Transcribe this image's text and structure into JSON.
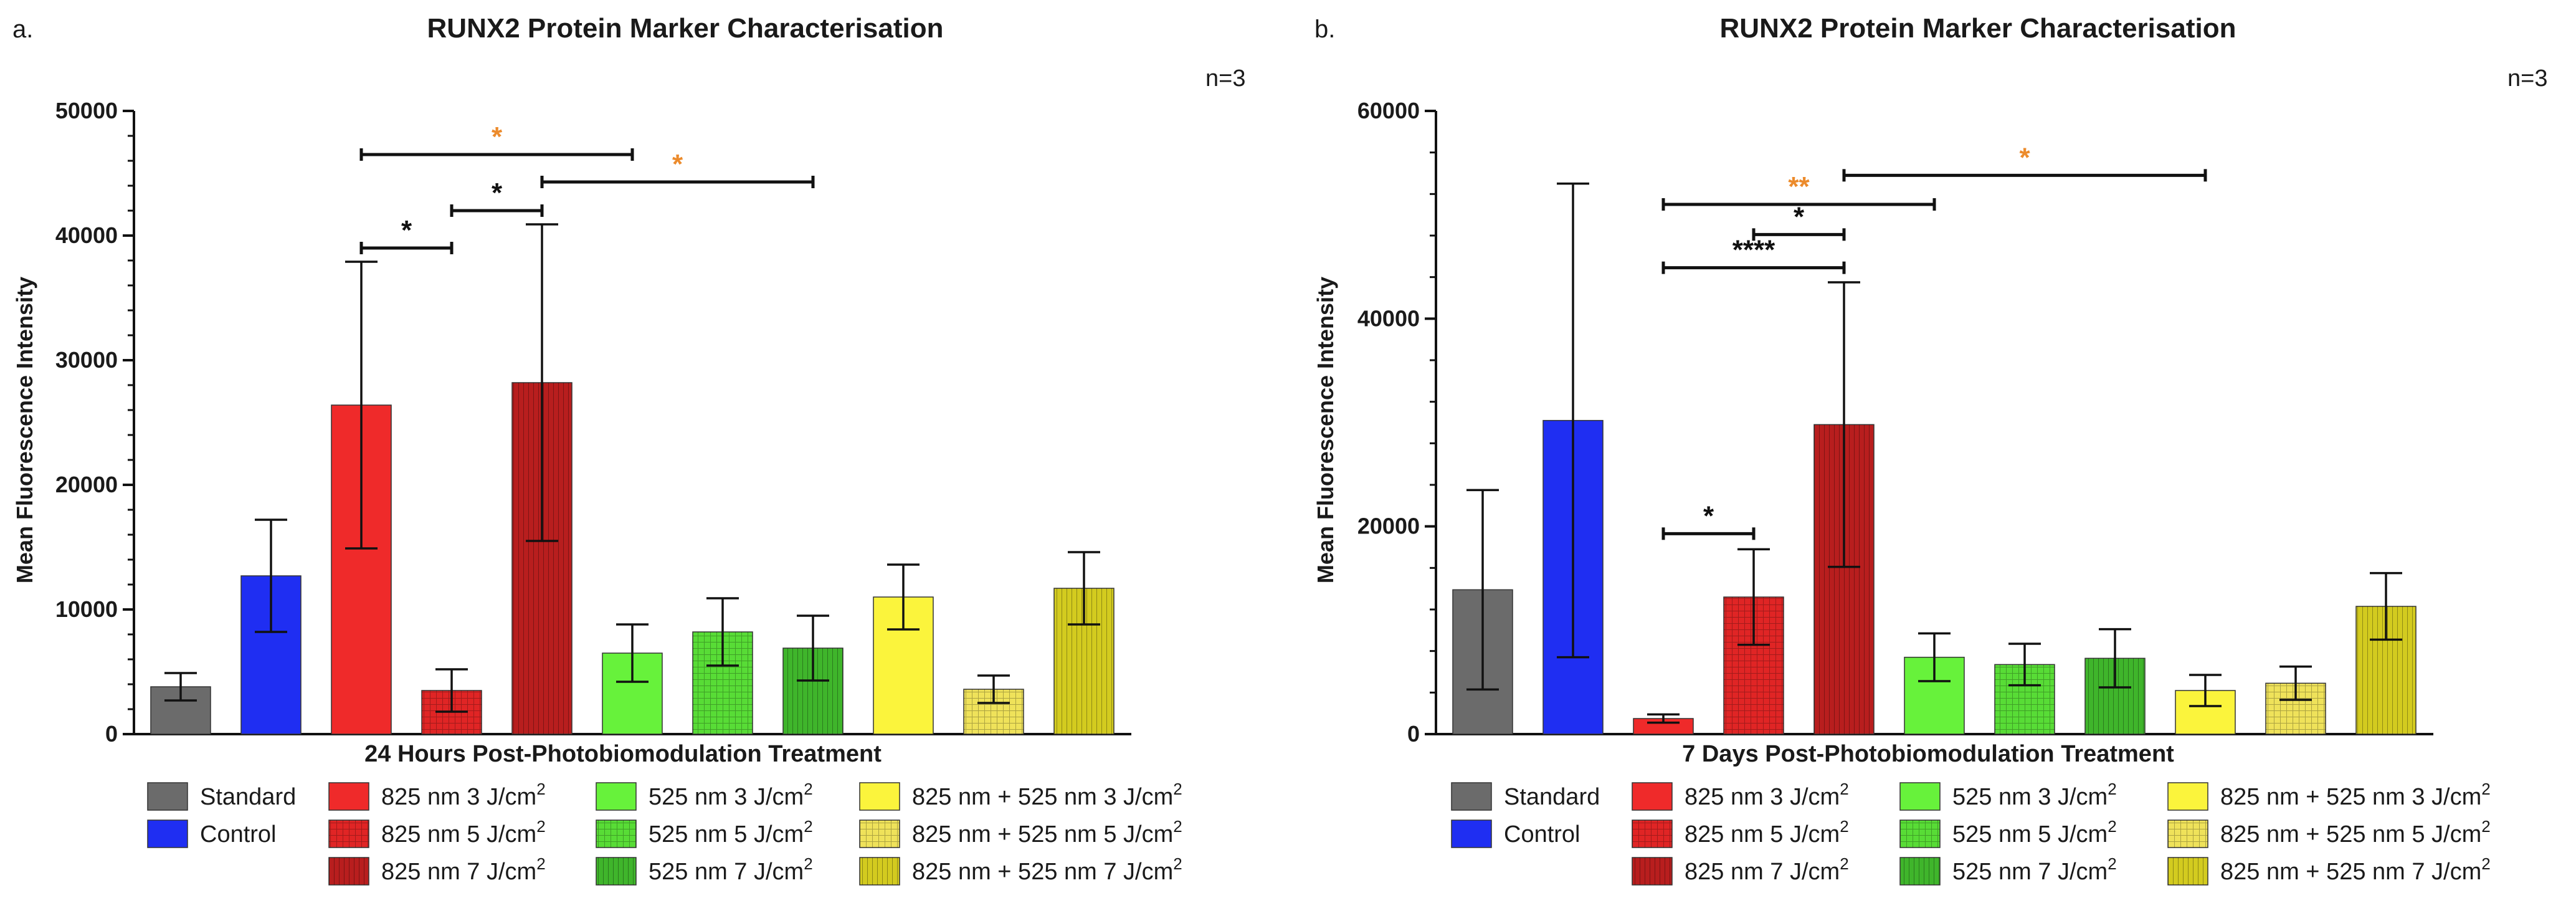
{
  "chart_data": [
    {
      "type": "bar",
      "panel_label": "a.",
      "title": "RUNX2 Protein Marker Characterisation",
      "annotation": "n=3",
      "xlabel": "24 Hours Post-Photobiomodulation Treatment",
      "ylabel": "Mean Fluorescence Intensity",
      "ylim": [
        0,
        50000
      ],
      "yticks": [
        "0",
        "10000",
        "20000",
        "30000",
        "40000",
        "50000"
      ],
      "categories": [
        "Standard",
        "Control",
        "825 nm 3 J/cm2",
        "825 nm 5 J/cm2",
        "825 nm 7 J/cm2",
        "525 nm 3 J/cm2",
        "525 nm 5 J/cm2",
        "525 nm 7 J/cm2",
        "825 nm + 525 nm 3 J/cm2",
        "825 nm + 525 nm 5 J/cm2",
        "825 nm + 525 nm 7 J/cm2"
      ],
      "values": [
        3800,
        12700,
        26400,
        3500,
        28200,
        6500,
        8200,
        6900,
        11000,
        3600,
        11700
      ],
      "errors": [
        1100,
        4500,
        11500,
        1700,
        12700,
        2300,
        2700,
        2600,
        2600,
        1100,
        2900
      ],
      "significance": [
        {
          "from": 2,
          "to": 3,
          "label": "*",
          "value": 39000,
          "color": "#111111"
        },
        {
          "from": 3,
          "to": 4,
          "label": "*",
          "value": 42000,
          "color": "#111111"
        },
        {
          "from": 2,
          "to": 5,
          "label": "*",
          "value": 46500,
          "color": "#ec8b2c"
        },
        {
          "from": 4,
          "to": 7,
          "label": "*",
          "value": 44300,
          "color": "#ec8b2c"
        }
      ]
    },
    {
      "type": "bar",
      "panel_label": "b.",
      "title": "RUNX2 Protein Marker Characterisation",
      "annotation": "n=3",
      "xlabel": "7 Days Post-Photobiomodulation Treatment",
      "ylabel": "Mean Fluorescence Intensity",
      "ylim": [
        0,
        60000
      ],
      "yticks": [
        "0",
        "20000",
        "40000",
        "60000"
      ],
      "categories": [
        "Standard",
        "Control",
        "825 nm 3 J/cm2",
        "825 nm 5 J/cm2",
        "825 nm 7 J/cm2",
        "525 nm 3 J/cm2",
        "525 nm 5 J/cm2",
        "525 nm 7 J/cm2",
        "825 nm + 525 nm 3 J/cm2",
        "825 nm + 525 nm 5 J/cm2",
        "825 nm + 525 nm 7 J/cm2"
      ],
      "values": [
        13900,
        30200,
        1500,
        13200,
        29800,
        7400,
        6700,
        7300,
        4200,
        4900,
        12300
      ],
      "errors": [
        9600,
        22800,
        400,
        4600,
        13700,
        2300,
        2000,
        2800,
        1500,
        1600,
        3200
      ],
      "significance": [
        {
          "from": 2,
          "to": 3,
          "label": "*",
          "value": 19300,
          "color": "#111111"
        },
        {
          "from": 2,
          "to": 4,
          "label": "****",
          "value": 44900,
          "color": "#111111"
        },
        {
          "from": 3,
          "to": 4,
          "label": "*",
          "value": 48100,
          "color": "#111111"
        },
        {
          "from": 2,
          "to": 5,
          "label": "**",
          "value": 51000,
          "color": "#ec8b2c"
        },
        {
          "from": 4,
          "to": 8,
          "label": "*",
          "value": 53800,
          "color": "#ec8b2c"
        }
      ]
    }
  ],
  "legend": [
    {
      "text": "Standard",
      "sup": "",
      "color": "#6b6b6b",
      "pattern": "solid"
    },
    {
      "text": "Control",
      "sup": "",
      "color": "#1f2ef2",
      "pattern": "solid"
    },
    {
      "text": "825 nm 3 J/cm",
      "sup": "2",
      "color": "#ef2a2a",
      "pattern": "solid"
    },
    {
      "text": "825 nm 5 J/cm",
      "sup": "2",
      "color": "#e02525",
      "pattern": "grid"
    },
    {
      "text": "825 nm 7 J/cm",
      "sup": "2",
      "color": "#b81e1e",
      "pattern": "vert"
    },
    {
      "text": "525 nm 3 J/cm",
      "sup": "2",
      "color": "#67f23b",
      "pattern": "solid"
    },
    {
      "text": "525 nm 5 J/cm",
      "sup": "2",
      "color": "#58dc36",
      "pattern": "grid"
    },
    {
      "text": "525 nm 7 J/cm",
      "sup": "2",
      "color": "#3fb52b",
      "pattern": "vert"
    },
    {
      "text": "825 nm + 525 nm 3 J/cm",
      "sup": "2",
      "color": "#fbf43c",
      "pattern": "solid"
    },
    {
      "text": "825 nm + 525 nm 5 J/cm",
      "sup": "2",
      "color": "#efe25a",
      "pattern": "grid"
    },
    {
      "text": "825 nm + 525 nm 7 J/cm",
      "sup": "2",
      "color": "#d3cb1f",
      "pattern": "vert"
    }
  ]
}
